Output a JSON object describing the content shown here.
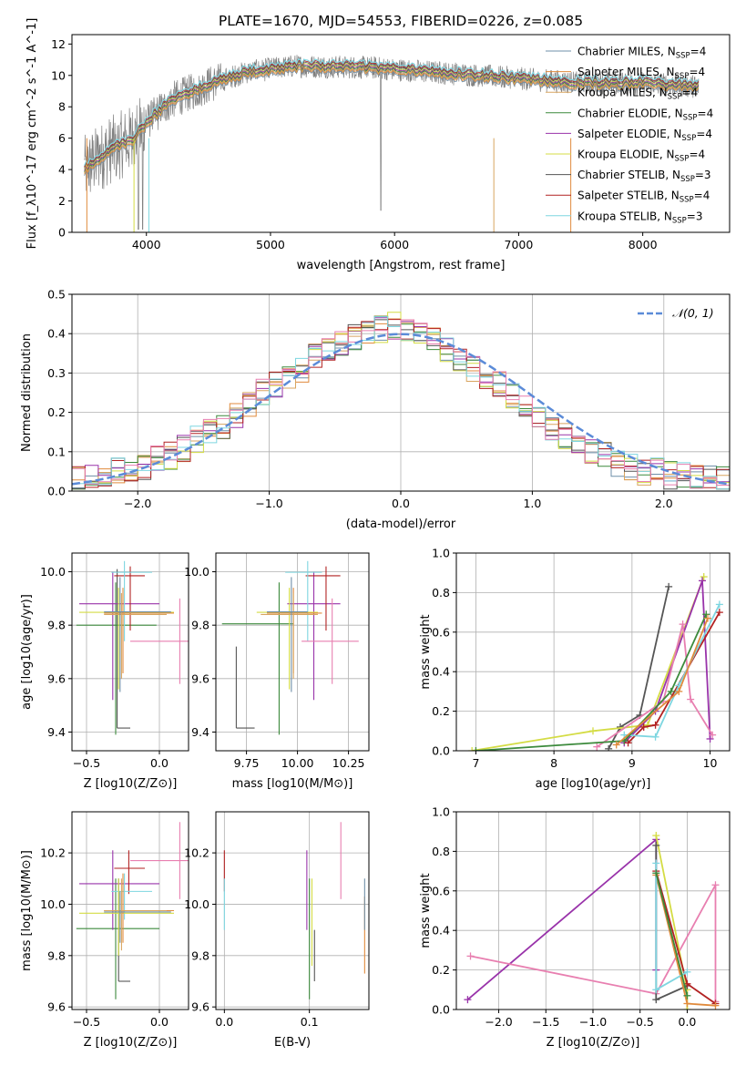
{
  "title": "PLATE=1670, MJD=54553, FIBERID=0226, z=0.085",
  "colors": {
    "chab_miles": "#6f8fa8",
    "salp_miles": "#e08a3c",
    "krou_miles": "#d8a560",
    "chab_elodie": "#3c8a3c",
    "salp_elodie": "#9933aa",
    "krou_elodie": "#d4dc44",
    "chab_stelib": "#555555",
    "salp_stelib": "#b22222",
    "krou_stelib": "#7ed6e0",
    "pink": "#e87fb0",
    "gauss": "#5b8bd8",
    "spectrum": "#808080",
    "grid": "#b0b0b0"
  },
  "chart_data": [
    {
      "type": "line",
      "name": "spectrum",
      "xlabel": "wavelength [Angstrom, rest frame]",
      "ylabel": "Flux [f_λ10^-17 erg cm^-2 s^-1 A^-1]",
      "xlim": [
        3400,
        8700
      ],
      "ylim": [
        0,
        12.6
      ],
      "xticks": [
        4000,
        5000,
        6000,
        7000,
        8000
      ],
      "yticks": [
        0,
        2,
        4,
        6,
        8,
        10,
        12
      ],
      "grid": false,
      "legend_position": "right",
      "legend": [
        "Chabrier MILES, N_SSP=4",
        "Salpeter MILES, N_SSP=4",
        "Kroupa MILES, N_SSP=4",
        "Chabrier ELODIE, N_SSP=4",
        "Salpeter ELODIE, N_SSP=4",
        "Kroupa ELODIE, N_SSP=4",
        "Chabrier STELIB, N_SSP=3",
        "Salpeter STELIB, N_SSP=4",
        "Kroupa STELIB, N_SSP=3"
      ],
      "continuum": [
        [
          3500,
          4.0
        ],
        [
          3700,
          5.2
        ],
        [
          3900,
          6.0
        ],
        [
          4000,
          7.0
        ],
        [
          4200,
          8.4
        ],
        [
          4500,
          9.4
        ],
        [
          4800,
          10.2
        ],
        [
          5200,
          10.6
        ],
        [
          5800,
          10.5
        ],
        [
          6500,
          10.1
        ],
        [
          7000,
          9.8
        ],
        [
          7500,
          9.5
        ],
        [
          8000,
          9.5
        ],
        [
          8450,
          9.3
        ]
      ]
    },
    {
      "type": "histogram",
      "name": "residuals",
      "xlabel": "(data-model)/error",
      "ylabel": "Normed distribution",
      "xlim": [
        -2.5,
        2.5
      ],
      "ylim": [
        0,
        0.5
      ],
      "xticks": [
        -2,
        -1,
        0,
        1,
        2
      ],
      "yticks": [
        0.0,
        0.1,
        0.2,
        0.3,
        0.4,
        0.5
      ],
      "grid": true,
      "legend_position": "top-right",
      "legend": [
        "𝒩(0, 1)"
      ],
      "bin_width": 0.1,
      "series_heights_example": [
        0.03,
        0.035,
        0.04,
        0.05,
        0.055,
        0.06,
        0.08,
        0.09,
        0.11,
        0.13,
        0.15,
        0.16,
        0.19,
        0.22,
        0.25,
        0.27,
        0.29,
        0.31,
        0.34,
        0.36,
        0.38,
        0.39,
        0.4,
        0.41,
        0.42,
        0.41,
        0.4,
        0.38,
        0.36,
        0.34,
        0.31,
        0.29,
        0.27,
        0.24,
        0.22,
        0.19,
        0.16,
        0.14,
        0.12,
        0.1,
        0.09,
        0.07,
        0.06,
        0.05,
        0.05,
        0.04,
        0.04,
        0.03,
        0.03,
        0.03
      ]
    },
    {
      "type": "scatter",
      "name": "age-vs-Z",
      "xlabel": "Z [log10(Z/Z⊙)]",
      "ylabel": "age [log10(age/yr)]",
      "xlim": [
        -0.6,
        0.2
      ],
      "ylim": [
        9.33,
        10.07
      ],
      "xticks": [
        -0.5,
        0.0
      ],
      "yticks": [
        9.4,
        9.6,
        9.8,
        10.0
      ],
      "grid": true,
      "points": [
        {
          "c": "chab_stelib",
          "x": -0.29,
          "y": 9.415,
          "xe": [
            -0.29,
            -0.2
          ],
          "ye": [
            9.415,
            10.01
          ]
        },
        {
          "c": "chab_elodie",
          "x": -0.3,
          "y": 9.8,
          "xe": [
            -0.57,
            -0.02
          ],
          "ye": [
            9.39,
            9.96
          ]
        },
        {
          "c": "salp_elodie",
          "x": -0.32,
          "y": 9.88,
          "xe": [
            -0.55,
            0.0
          ],
          "ye": [
            9.52,
            10.0
          ]
        },
        {
          "c": "salp_stelib",
          "x": -0.2,
          "y": 9.985,
          "xe": [
            -0.31,
            -0.1
          ],
          "ye": [
            9.78,
            10.02
          ]
        },
        {
          "c": "krou_stelib",
          "x": -0.24,
          "y": 9.998,
          "xe": [
            -0.33,
            -0.05
          ],
          "ye": [
            9.74,
            10.04
          ]
        },
        {
          "c": "krou_elodie",
          "x": -0.28,
          "y": 9.848,
          "xe": [
            -0.55,
            0.1
          ],
          "ye": [
            9.56,
            9.94
          ]
        },
        {
          "c": "salp_miles",
          "x": -0.25,
          "y": 9.845,
          "xe": [
            -0.38,
            0.1
          ],
          "ye": [
            9.62,
            9.94
          ]
        },
        {
          "c": "krou_miles",
          "x": -0.26,
          "y": 9.84,
          "xe": [
            -0.38,
            0.05
          ],
          "ye": [
            9.6,
            9.92
          ]
        },
        {
          "c": "chab_miles",
          "x": -0.27,
          "y": 9.85,
          "xe": [
            -0.38,
            0.08
          ],
          "ye": [
            9.55,
            9.98
          ]
        },
        {
          "c": "pink",
          "x": 0.14,
          "y": 9.74,
          "xe": [
            -0.2,
            0.2
          ],
          "ye": [
            9.58,
            9.9
          ]
        }
      ]
    },
    {
      "type": "scatter",
      "name": "age-vs-mass",
      "xlabel": "mass [log10(M/M⊙)]",
      "ylabel": "",
      "xlim": [
        9.6,
        10.35
      ],
      "ylim": [
        9.33,
        10.07
      ],
      "xticks": [
        9.75,
        10.0,
        10.25
      ],
      "yticks": [
        9.4,
        9.6,
        9.8,
        10.0
      ],
      "grid": true,
      "points": [
        {
          "c": "chab_stelib",
          "x": 9.7,
          "y": 9.415,
          "xe": [
            9.7,
            9.79
          ],
          "ye": [
            9.415,
            9.72
          ]
        },
        {
          "c": "chab_elodie",
          "x": 9.91,
          "y": 9.805,
          "xe": [
            9.63,
            9.98
          ],
          "ye": [
            9.39,
            9.96
          ]
        },
        {
          "c": "salp_elodie",
          "x": 10.08,
          "y": 9.88,
          "xe": [
            9.95,
            10.21
          ],
          "ye": [
            9.52,
            10.0
          ]
        },
        {
          "c": "salp_stelib",
          "x": 10.14,
          "y": 9.985,
          "xe": [
            10.04,
            10.21
          ],
          "ye": [
            9.78,
            10.02
          ]
        },
        {
          "c": "krou_stelib",
          "x": 10.05,
          "y": 9.998,
          "xe": [
            9.94,
            10.12
          ],
          "ye": [
            9.74,
            10.04
          ]
        },
        {
          "c": "krou_elodie",
          "x": 9.96,
          "y": 9.848,
          "xe": [
            9.8,
            10.1
          ],
          "ye": [
            9.56,
            9.94
          ]
        },
        {
          "c": "salp_miles",
          "x": 9.98,
          "y": 9.845,
          "xe": [
            9.85,
            10.12
          ],
          "ye": [
            9.62,
            9.94
          ]
        },
        {
          "c": "krou_miles",
          "x": 9.98,
          "y": 9.84,
          "xe": [
            9.82,
            10.1
          ],
          "ye": [
            9.6,
            9.92
          ]
        },
        {
          "c": "chab_miles",
          "x": 9.97,
          "y": 9.85,
          "xe": [
            9.85,
            10.05
          ],
          "ye": [
            9.55,
            9.98
          ]
        },
        {
          "c": "pink",
          "x": 10.17,
          "y": 9.74,
          "xe": [
            10.02,
            10.3
          ],
          "ye": [
            9.58,
            9.9
          ]
        }
      ]
    },
    {
      "type": "line",
      "name": "massweight-vs-age",
      "xlabel": "age [log10(age/yr)]",
      "ylabel": "mass weight",
      "xlim": [
        6.75,
        10.25
      ],
      "ylim": [
        0,
        1
      ],
      "xticks": [
        7,
        8,
        9,
        10
      ],
      "yticks": [
        0.0,
        0.2,
        0.4,
        0.6,
        0.8,
        1.0
      ],
      "grid": true,
      "series": [
        {
          "c": "chab_stelib",
          "points": [
            [
              8.7,
              0.01
            ],
            [
              8.85,
              0.12
            ],
            [
              9.1,
              0.18
            ],
            [
              9.47,
              0.83
            ]
          ]
        },
        {
          "c": "krou_elodie",
          "points": [
            [
              6.95,
              0.0
            ],
            [
              8.5,
              0.1
            ],
            [
              9.2,
              0.13
            ],
            [
              9.92,
              0.88
            ]
          ]
        },
        {
          "c": "salp_elodie",
          "points": [
            [
              8.9,
              0.04
            ],
            [
              9.3,
              0.2
            ],
            [
              9.9,
              0.86
            ],
            [
              10.0,
              0.06
            ]
          ]
        },
        {
          "c": "pink",
          "points": [
            [
              8.55,
              0.02
            ],
            [
              9.4,
              0.25
            ],
            [
              9.65,
              0.64
            ],
            [
              9.75,
              0.26
            ],
            [
              10.03,
              0.08
            ]
          ]
        },
        {
          "c": "salp_stelib",
          "points": [
            [
              8.95,
              0.04
            ],
            [
              9.15,
              0.12
            ],
            [
              9.3,
              0.13
            ],
            [
              10.12,
              0.7
            ]
          ]
        },
        {
          "c": "krou_stelib",
          "points": [
            [
              8.9,
              0.08
            ],
            [
              9.3,
              0.07
            ],
            [
              9.6,
              0.33
            ],
            [
              10.12,
              0.74
            ]
          ]
        },
        {
          "c": "chab_elodie",
          "points": [
            [
              7.0,
              0.0
            ],
            [
              8.9,
              0.05
            ],
            [
              9.5,
              0.3
            ],
            [
              9.95,
              0.69
            ]
          ]
        },
        {
          "c": "salp_miles",
          "points": [
            [
              8.8,
              0.03
            ],
            [
              9.6,
              0.3
            ],
            [
              9.97,
              0.67
            ]
          ]
        }
      ]
    },
    {
      "type": "scatter",
      "name": "mass-vs-Z",
      "xlabel": "Z [log10(Z/Z⊙)]",
      "ylabel": "mass [log10(M/M⊙)]",
      "xlim": [
        -0.6,
        0.2
      ],
      "ylim": [
        9.59,
        10.36
      ],
      "xticks": [
        -0.5,
        0.0
      ],
      "yticks": [
        9.6,
        9.8,
        10.0,
        10.2
      ],
      "grid": true,
      "points": [
        {
          "c": "chab_stelib",
          "x": -0.28,
          "y": 9.7,
          "xe": [
            -0.28,
            -0.2
          ],
          "ye": [
            9.7,
            10.1
          ]
        },
        {
          "c": "chab_elodie",
          "x": -0.3,
          "y": 9.905,
          "xe": [
            -0.57,
            0.0
          ],
          "ye": [
            9.63,
            10.1
          ]
        },
        {
          "c": "salp_elodie",
          "x": -0.32,
          "y": 10.08,
          "xe": [
            -0.55,
            0.0
          ],
          "ye": [
            9.9,
            10.21
          ]
        },
        {
          "c": "salp_stelib",
          "x": -0.21,
          "y": 10.14,
          "xe": [
            -0.31,
            -0.1
          ],
          "ye": [
            10.04,
            10.21
          ]
        },
        {
          "c": "krou_stelib",
          "x": -0.24,
          "y": 10.05,
          "xe": [
            -0.33,
            -0.05
          ],
          "ye": [
            9.94,
            10.12
          ]
        },
        {
          "c": "krou_elodie",
          "x": -0.28,
          "y": 9.965,
          "xe": [
            -0.55,
            0.1
          ],
          "ye": [
            9.8,
            10.1
          ]
        },
        {
          "c": "salp_miles",
          "x": -0.25,
          "y": 9.975,
          "xe": [
            -0.38,
            0.1
          ],
          "ye": [
            9.85,
            10.12
          ]
        },
        {
          "c": "krou_miles",
          "x": -0.26,
          "y": 9.975,
          "xe": [
            -0.38,
            0.05
          ],
          "ye": [
            9.82,
            10.1
          ]
        },
        {
          "c": "chab_miles",
          "x": -0.27,
          "y": 9.97,
          "xe": [
            -0.38,
            0.08
          ],
          "ye": [
            9.85,
            10.05
          ]
        },
        {
          "c": "pink",
          "x": 0.14,
          "y": 10.17,
          "xe": [
            -0.2,
            0.2
          ],
          "ye": [
            10.02,
            10.32
          ]
        }
      ]
    },
    {
      "type": "scatter",
      "name": "mass-vs-EBV",
      "xlabel": "E(B-V)",
      "ylabel": "",
      "xlim": [
        -0.01,
        0.17
      ],
      "ylim": [
        9.59,
        10.36
      ],
      "xticks": [
        0.0,
        0.1
      ],
      "yticks": [
        9.6,
        9.8,
        10.0,
        10.2
      ],
      "grid": true,
      "points": [
        {
          "c": "salp_stelib",
          "x": 0.0,
          "y": 10.13,
          "ye": [
            10.05,
            10.21
          ]
        },
        {
          "c": "krou_stelib",
          "x": 0.0,
          "y": 10.0,
          "ye": [
            9.9,
            10.1
          ]
        },
        {
          "c": "salp_elodie",
          "x": 0.097,
          "y": 10.05,
          "ye": [
            9.9,
            10.21
          ]
        },
        {
          "c": "chab_elodie",
          "x": 0.1,
          "y": 9.9,
          "ye": [
            9.63,
            10.1
          ]
        },
        {
          "c": "krou_elodie",
          "x": 0.103,
          "y": 9.95,
          "ye": [
            9.76,
            10.1
          ]
        },
        {
          "c": "chab_stelib",
          "x": 0.106,
          "y": 9.8,
          "ye": [
            9.7,
            9.9
          ]
        },
        {
          "c": "pink",
          "x": 0.137,
          "y": 10.17,
          "ye": [
            10.02,
            10.32
          ]
        },
        {
          "c": "salp_miles",
          "x": 0.165,
          "y": 9.88,
          "ye": [
            9.73,
            10.03
          ]
        },
        {
          "c": "chab_miles",
          "x": 0.165,
          "y": 10.0,
          "ye": [
            9.9,
            10.1
          ]
        }
      ]
    },
    {
      "type": "line",
      "name": "massweight-vs-Z",
      "xlabel": "Z [log10(Z/Z⊙)]",
      "ylabel": "mass weight",
      "xlim": [
        -2.45,
        0.45
      ],
      "ylim": [
        0,
        1
      ],
      "xticks": [
        -2.0,
        -1.5,
        -1.0,
        -0.5,
        0.0
      ],
      "yticks": [
        0.0,
        0.2,
        0.4,
        0.6,
        0.8,
        1.0
      ],
      "grid": true,
      "series": [
        {
          "c": "salp_elodie",
          "points": [
            [
              -2.33,
              0.05
            ],
            [
              -0.33,
              0.86
            ],
            [
              -0.33,
              0.2
            ]
          ]
        },
        {
          "c": "pink",
          "points": [
            [
              -2.3,
              0.27
            ],
            [
              -0.33,
              0.08
            ],
            [
              0.3,
              0.63
            ],
            [
              0.3,
              0.04
            ]
          ]
        },
        {
          "c": "krou_elodie",
          "points": [
            [
              -0.33,
              0.88
            ],
            [
              0.0,
              0.1
            ],
            [
              0.0,
              0.0
            ]
          ]
        },
        {
          "c": "chab_stelib",
          "points": [
            [
              -0.33,
              0.83
            ],
            [
              -0.33,
              0.05
            ],
            [
              0.0,
              0.12
            ]
          ]
        },
        {
          "c": "salp_stelib",
          "points": [
            [
              -0.33,
              0.7
            ],
            [
              0.0,
              0.13
            ],
            [
              0.3,
              0.03
            ]
          ]
        },
        {
          "c": "salp_miles",
          "points": [
            [
              -0.33,
              0.68
            ],
            [
              0.0,
              0.03
            ],
            [
              0.3,
              0.02
            ]
          ]
        },
        {
          "c": "krou_stelib",
          "points": [
            [
              -0.33,
              0.74
            ],
            [
              -0.33,
              0.1
            ],
            [
              0.0,
              0.19
            ]
          ]
        },
        {
          "c": "chab_elodie",
          "points": [
            [
              -0.33,
              0.69
            ],
            [
              0.0,
              0.07
            ]
          ]
        }
      ]
    }
  ]
}
